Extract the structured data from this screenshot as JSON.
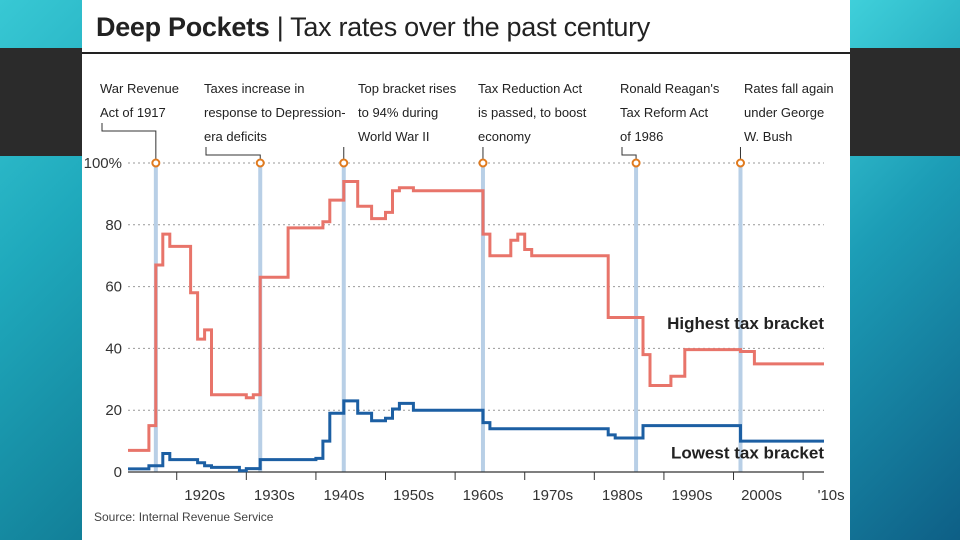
{
  "title_bold": "Deep Pockets",
  "title_rest": "Tax rates over the past century",
  "source": "Source: Internal Revenue Service",
  "colors": {
    "high": "#e8746a",
    "low": "#1c5fa3",
    "event_band": "#b8cfe6",
    "grid": "#999999"
  },
  "chart_data": {
    "type": "line",
    "title": "Deep Pockets | Tax rates over the past century",
    "xlabel": "",
    "ylabel": "",
    "xlim": [
      1913,
      2013
    ],
    "ylim": [
      0,
      100
    ],
    "y_ticks": [
      0,
      20,
      40,
      60,
      80,
      100
    ],
    "y_tick_labels": [
      "0",
      "20",
      "40",
      "60",
      "80",
      "100%"
    ],
    "x_ticks": [
      1920,
      1930,
      1940,
      1950,
      1960,
      1970,
      1980,
      1990,
      2000,
      2010
    ],
    "x_tick_labels": [
      "1920s",
      "1930s",
      "1940s",
      "1950s",
      "1960s",
      "1970s",
      "1980s",
      "1990s",
      "2000s",
      "'10s"
    ],
    "series": [
      {
        "name": "Highest tax bracket",
        "points": [
          [
            1913,
            7
          ],
          [
            1916,
            7
          ],
          [
            1916,
            15
          ],
          [
            1917,
            15
          ],
          [
            1917,
            67
          ],
          [
            1918,
            67
          ],
          [
            1918,
            77
          ],
          [
            1919,
            77
          ],
          [
            1919,
            73
          ],
          [
            1922,
            73
          ],
          [
            1922,
            58
          ],
          [
            1923,
            58
          ],
          [
            1923,
            43
          ],
          [
            1924,
            43
          ],
          [
            1924,
            46
          ],
          [
            1925,
            46
          ],
          [
            1925,
            25
          ],
          [
            1930,
            25
          ],
          [
            1930,
            24
          ],
          [
            1931,
            24
          ],
          [
            1931,
            25
          ],
          [
            1932,
            25
          ],
          [
            1932,
            63
          ],
          [
            1936,
            63
          ],
          [
            1936,
            79
          ],
          [
            1941,
            79
          ],
          [
            1941,
            81
          ],
          [
            1942,
            81
          ],
          [
            1942,
            88
          ],
          [
            1944,
            88
          ],
          [
            1944,
            94
          ],
          [
            1946,
            94
          ],
          [
            1946,
            86
          ],
          [
            1948,
            86
          ],
          [
            1948,
            82
          ],
          [
            1950,
            82
          ],
          [
            1950,
            84
          ],
          [
            1951,
            84
          ],
          [
            1951,
            91
          ],
          [
            1952,
            91
          ],
          [
            1952,
            92
          ],
          [
            1954,
            92
          ],
          [
            1954,
            91
          ],
          [
            1964,
            91
          ],
          [
            1964,
            77
          ],
          [
            1965,
            77
          ],
          [
            1965,
            70
          ],
          [
            1968,
            70
          ],
          [
            1968,
            75
          ],
          [
            1969,
            75
          ],
          [
            1969,
            77
          ],
          [
            1970,
            77
          ],
          [
            1970,
            72
          ],
          [
            1971,
            72
          ],
          [
            1971,
            70
          ],
          [
            1982,
            70
          ],
          [
            1982,
            50
          ],
          [
            1987,
            50
          ],
          [
            1987,
            38
          ],
          [
            1988,
            38
          ],
          [
            1988,
            28
          ],
          [
            1991,
            28
          ],
          [
            1991,
            31
          ],
          [
            1993,
            31
          ],
          [
            1993,
            39.6
          ],
          [
            2001,
            39.6
          ],
          [
            2001,
            39
          ],
          [
            2003,
            39
          ],
          [
            2003,
            35
          ],
          [
            2013,
            35
          ]
        ]
      },
      {
        "name": "Lowest tax bracket",
        "points": [
          [
            1913,
            1
          ],
          [
            1916,
            1
          ],
          [
            1916,
            2
          ],
          [
            1917,
            2
          ],
          [
            1917,
            2
          ],
          [
            1918,
            2
          ],
          [
            1918,
            6
          ],
          [
            1919,
            6
          ],
          [
            1919,
            4
          ],
          [
            1923,
            4
          ],
          [
            1923,
            3
          ],
          [
            1924,
            3
          ],
          [
            1924,
            2
          ],
          [
            1925,
            2
          ],
          [
            1925,
            1.5
          ],
          [
            1929,
            1.5
          ],
          [
            1929,
            0.4
          ],
          [
            1930,
            0.4
          ],
          [
            1930,
            1.1
          ],
          [
            1932,
            1.1
          ],
          [
            1932,
            4
          ],
          [
            1940,
            4
          ],
          [
            1940,
            4.4
          ],
          [
            1941,
            4.4
          ],
          [
            1941,
            10
          ],
          [
            1942,
            10
          ],
          [
            1942,
            19
          ],
          [
            1944,
            19
          ],
          [
            1944,
            23
          ],
          [
            1946,
            23
          ],
          [
            1946,
            19
          ],
          [
            1948,
            19
          ],
          [
            1948,
            16.6
          ],
          [
            1950,
            16.6
          ],
          [
            1950,
            17.4
          ],
          [
            1951,
            17.4
          ],
          [
            1951,
            20.4
          ],
          [
            1952,
            20.4
          ],
          [
            1952,
            22.2
          ],
          [
            1954,
            22.2
          ],
          [
            1954,
            20
          ],
          [
            1964,
            20
          ],
          [
            1964,
            16
          ],
          [
            1965,
            16
          ],
          [
            1965,
            14
          ],
          [
            1982,
            14
          ],
          [
            1982,
            12
          ],
          [
            1983,
            12
          ],
          [
            1983,
            11
          ],
          [
            1987,
            11
          ],
          [
            1987,
            15
          ],
          [
            2001,
            15
          ],
          [
            2001,
            10
          ],
          [
            2013,
            10
          ]
        ]
      }
    ],
    "series_labels": [
      "Highest tax bracket",
      "Lowest tax bracket"
    ],
    "events": [
      {
        "year": 1917,
        "label_lines": [
          "War Revenue",
          "Act of 1917"
        ]
      },
      {
        "year": 1932,
        "label_lines": [
          "Taxes increase in",
          "response to Depression-",
          "era deficits"
        ]
      },
      {
        "year": 1944,
        "label_lines": [
          "Top bracket rises",
          "to 94% during",
          "World War II"
        ]
      },
      {
        "year": 1964,
        "label_lines": [
          "Tax Reduction Act",
          "is passed, to boost",
          "economy"
        ]
      },
      {
        "year": 1986,
        "label_lines": [
          "Ronald Reagan's",
          "Tax Reform Act",
          "of 1986"
        ]
      },
      {
        "year": 2001,
        "label_lines": [
          "Rates fall again",
          "under George",
          "W. Bush"
        ]
      }
    ]
  }
}
